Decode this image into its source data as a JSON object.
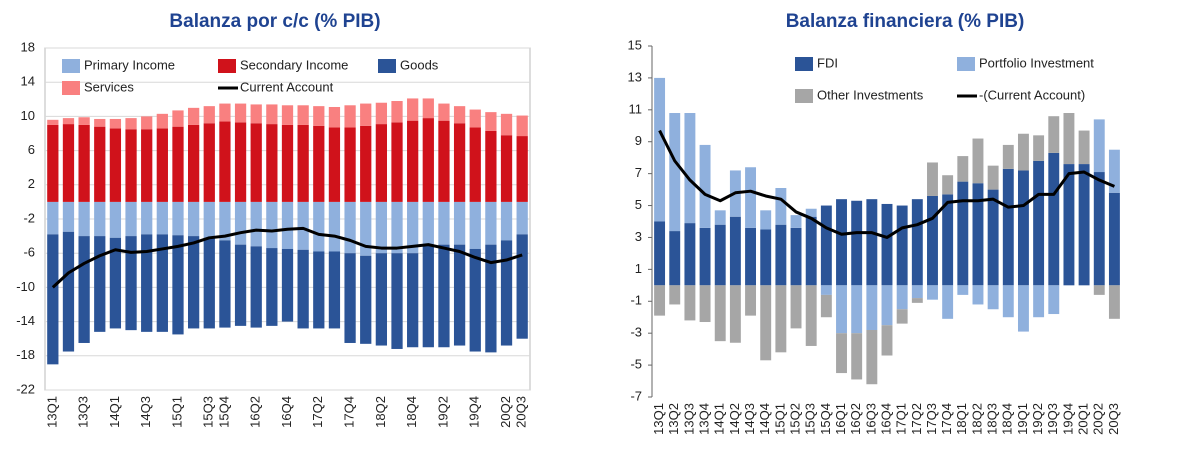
{
  "chart_data": [
    {
      "type": "bar",
      "title": "Balanza por c/c (% PIB)",
      "categories": [
        "13Q1",
        null,
        "13Q3",
        null,
        "14Q1",
        null,
        "14Q3",
        null,
        "15Q1",
        null,
        "15Q3",
        "15Q4",
        null,
        "16Q2",
        null,
        "16Q4",
        null,
        "17Q2",
        null,
        "17Q4",
        null,
        "18Q2",
        null,
        "18Q4",
        null,
        "19Q2",
        null,
        "19Q4",
        null,
        "20Q2",
        "20Q3"
      ],
      "series": [
        {
          "name": "Primary Income",
          "color": "#8fb0dd",
          "values": [
            -3.8,
            -3.5,
            -4,
            -4,
            -4.2,
            -4,
            -3.8,
            -3.8,
            -3.9,
            -4,
            -4.2,
            -4.5,
            -5,
            -5.2,
            -5.4,
            -5.5,
            -5.6,
            -5.8,
            -5.8,
            -6,
            -6.3,
            -6,
            -6,
            -6,
            -5,
            -5,
            -5,
            -5.5,
            -5,
            -4.5,
            -3.8
          ]
        },
        {
          "name": "Secondary Income",
          "color": "#d0121b",
          "values": [
            9,
            9.1,
            9,
            8.8,
            8.6,
            8.5,
            8.5,
            8.6,
            8.8,
            9,
            9.2,
            9.4,
            9.3,
            9.2,
            9.1,
            9,
            9,
            8.9,
            8.7,
            8.7,
            8.9,
            9.1,
            9.3,
            9.5,
            9.8,
            9.5,
            9.2,
            8.7,
            8.3,
            7.8,
            7.7
          ]
        },
        {
          "name": "Goods",
          "color": "#2b5497",
          "values": [
            -15.2,
            -14,
            -12.5,
            -11.2,
            -10.6,
            -11,
            -11.4,
            -11.4,
            -11.6,
            -10.8,
            -10.6,
            -10.2,
            -9.5,
            -9.5,
            -9.1,
            -8.5,
            -9.2,
            -9,
            -9,
            -10.5,
            -10.3,
            -10.8,
            -11.2,
            -11,
            -12,
            -12,
            -11.8,
            -12,
            -12.6,
            -12.3,
            -12.2
          ]
        },
        {
          "name": "Services",
          "color": "#f98080",
          "values": [
            0.6,
            0.7,
            0.9,
            0.9,
            1.1,
            1.3,
            1.5,
            1.7,
            1.9,
            2,
            2,
            2.1,
            2.2,
            2.2,
            2.3,
            2.3,
            2.3,
            2.3,
            2.4,
            2.6,
            2.6,
            2.5,
            2.5,
            2.6,
            2.3,
            2,
            2,
            2.1,
            2.2,
            2.5,
            2.4
          ]
        },
        {
          "name": "Current Account",
          "color": "#000000",
          "type": "line",
          "values": [
            -10,
            -8.3,
            -7.2,
            -6.3,
            -5.6,
            -5.9,
            -5.8,
            -5.5,
            -5.2,
            -4.8,
            -4.2,
            -4,
            -3.6,
            -3.3,
            -3.4,
            -3.2,
            -3.1,
            -3.8,
            -4,
            -4.5,
            -5.2,
            -5.4,
            -5.4,
            -5.2,
            -5,
            -5.4,
            -5.8,
            -6.5,
            -7.1,
            -6.8,
            -6.2
          ]
        }
      ],
      "ylim": [
        -22,
        18
      ],
      "yticks": [
        -22,
        -18,
        -14,
        -10,
        -6,
        -2,
        2,
        6,
        10,
        14,
        18
      ],
      "grid": true
    },
    {
      "type": "bar",
      "title": "Balanza financiera (% PIB)",
      "categories": [
        "13Q1",
        "13Q2",
        "13Q3",
        "13Q4",
        "14Q1",
        "14Q2",
        "14Q3",
        "14Q4",
        "15Q1",
        "15Q2",
        "15Q3",
        "15Q4",
        "16Q1",
        "16Q2",
        "16Q3",
        "16Q4",
        "17Q1",
        "17Q2",
        "17Q3",
        "17Q4",
        "18Q1",
        "18Q2",
        "18Q3",
        "18Q4",
        "19Q1",
        "19Q2",
        "19Q3",
        "19Q4",
        "20Q1",
        "20Q2",
        "20Q3"
      ],
      "series": [
        {
          "name": "FDI",
          "color": "#2b5497",
          "values": [
            4,
            3.4,
            3.9,
            3.6,
            3.8,
            4.3,
            3.6,
            3.5,
            3.8,
            3.6,
            4.3,
            5,
            5.4,
            5.3,
            5.4,
            5.1,
            5,
            5.4,
            5.6,
            5.7,
            6.5,
            6.4,
            6,
            7.3,
            7.2,
            7.8,
            8.3,
            7.6,
            7.6,
            7.1,
            5.8
          ]
        },
        {
          "name": "Portfolio Investment",
          "color": "#8fb0dd",
          "values": [
            9,
            7.4,
            6.9,
            5.2,
            0.9,
            2.9,
            3.8,
            1.2,
            2.3,
            0.8,
            0.5,
            -0.6,
            -3,
            -3,
            -2.8,
            -2.5,
            -1.5,
            -0.8,
            -0.9,
            -2.1,
            -0.6,
            -1.2,
            -1.5,
            -2,
            -2.9,
            -2,
            -1.8,
            0,
            0,
            3.3,
            2.7
          ]
        },
        {
          "name": "Other Investments",
          "color": "#a6a6a6",
          "values": [
            -1.9,
            -1.2,
            -2.2,
            -2.3,
            -3.5,
            -3.6,
            -1.9,
            -4.7,
            -4.2,
            -2.7,
            -3.8,
            -1.4,
            -2.5,
            -2.9,
            -3.4,
            -1.9,
            -0.9,
            -0.3,
            2.1,
            1.2,
            1.6,
            2.8,
            1.5,
            1.5,
            2.3,
            1.6,
            2.3,
            3.2,
            2.1,
            -0.6,
            -2.1
          ]
        },
        {
          "name": "-(Current Account)",
          "color": "#000000",
          "type": "line",
          "values": [
            9.7,
            7.8,
            6.6,
            5.7,
            5.3,
            5.8,
            5.9,
            5.6,
            5.4,
            4.6,
            4.2,
            3.6,
            3.2,
            3.3,
            3.3,
            3.0,
            3.6,
            3.8,
            4.2,
            5.2,
            5.3,
            5.3,
            5.4,
            4.9,
            5.0,
            5.7,
            5.7,
            7.0,
            7.1,
            6.6,
            6.2
          ]
        }
      ],
      "ylim": [
        -7,
        15
      ],
      "yticks": [
        -7,
        -5,
        -3,
        -1,
        1,
        3,
        5,
        7,
        9,
        11,
        13,
        15
      ],
      "grid": false
    }
  ]
}
